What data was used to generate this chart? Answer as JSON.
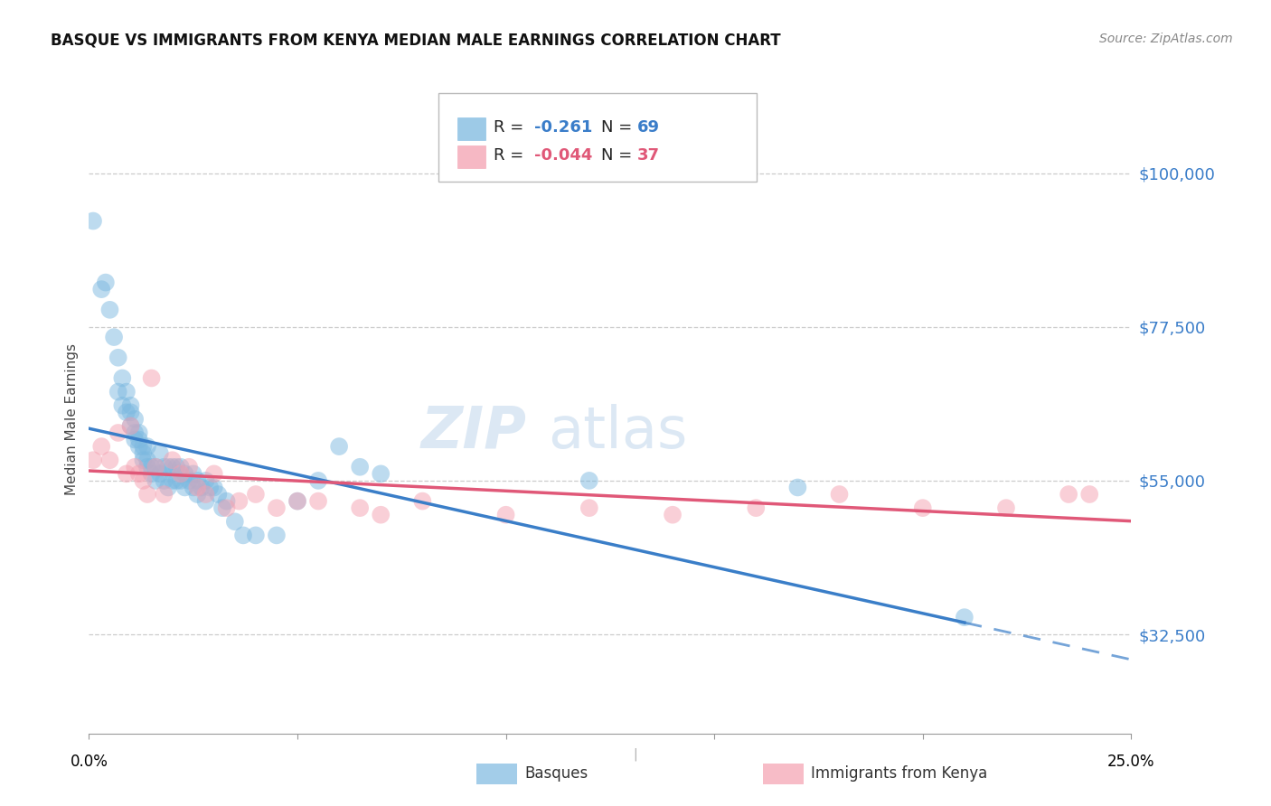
{
  "title": "BASQUE VS IMMIGRANTS FROM KENYA MEDIAN MALE EARNINGS CORRELATION CHART",
  "source": "Source: ZipAtlas.com",
  "ylabel": "Median Male Earnings",
  "y_ticks": [
    32500,
    55000,
    77500,
    100000
  ],
  "y_tick_labels": [
    "$32,500",
    "$55,000",
    "$77,500",
    "$100,000"
  ],
  "ylim": [
    18000,
    110000
  ],
  "xlim": [
    0.0,
    0.25
  ],
  "watermark_zip": "ZIP",
  "watermark_atlas": "atlas",
  "blue_color": "#7cb9e0",
  "pink_color": "#f4a0b0",
  "line_blue": "#3a7ec8",
  "line_pink": "#e05878",
  "blue_r": "-0.261",
  "blue_n": "69",
  "pink_r": "-0.044",
  "pink_n": "37",
  "basque_x": [
    0.001,
    0.003,
    0.004,
    0.005,
    0.006,
    0.007,
    0.007,
    0.008,
    0.008,
    0.009,
    0.009,
    0.01,
    0.01,
    0.01,
    0.011,
    0.011,
    0.011,
    0.012,
    0.012,
    0.012,
    0.013,
    0.013,
    0.013,
    0.014,
    0.014,
    0.014,
    0.015,
    0.015,
    0.016,
    0.016,
    0.017,
    0.017,
    0.018,
    0.018,
    0.019,
    0.019,
    0.02,
    0.02,
    0.021,
    0.021,
    0.022,
    0.022,
    0.023,
    0.023,
    0.024,
    0.025,
    0.025,
    0.026,
    0.026,
    0.027,
    0.028,
    0.028,
    0.029,
    0.03,
    0.031,
    0.032,
    0.033,
    0.035,
    0.037,
    0.04,
    0.045,
    0.05,
    0.055,
    0.06,
    0.065,
    0.07,
    0.12,
    0.17,
    0.21
  ],
  "basque_y": [
    93000,
    83000,
    84000,
    80000,
    76000,
    73000,
    68000,
    70000,
    66000,
    68000,
    65000,
    66000,
    65000,
    63000,
    64000,
    62000,
    61000,
    62000,
    61000,
    60000,
    60000,
    59000,
    58000,
    60000,
    58000,
    57000,
    57000,
    56000,
    57000,
    55000,
    59000,
    56000,
    57000,
    55000,
    57000,
    54000,
    57000,
    55000,
    57000,
    55000,
    57000,
    55000,
    56000,
    54000,
    55000,
    56000,
    54000,
    55000,
    53000,
    54000,
    55000,
    52000,
    54000,
    54000,
    53000,
    51000,
    52000,
    49000,
    47000,
    47000,
    47000,
    52000,
    55000,
    60000,
    57000,
    56000,
    55000,
    54000,
    35000
  ],
  "kenya_x": [
    0.001,
    0.003,
    0.005,
    0.007,
    0.009,
    0.01,
    0.011,
    0.012,
    0.013,
    0.014,
    0.015,
    0.016,
    0.018,
    0.02,
    0.022,
    0.024,
    0.026,
    0.028,
    0.03,
    0.033,
    0.036,
    0.04,
    0.045,
    0.05,
    0.055,
    0.065,
    0.07,
    0.08,
    0.1,
    0.12,
    0.14,
    0.16,
    0.18,
    0.2,
    0.22,
    0.235,
    0.24
  ],
  "kenya_y": [
    58000,
    60000,
    58000,
    62000,
    56000,
    63000,
    57000,
    56000,
    55000,
    53000,
    70000,
    57000,
    53000,
    58000,
    56000,
    57000,
    54000,
    53000,
    56000,
    51000,
    52000,
    53000,
    51000,
    52000,
    52000,
    51000,
    50000,
    52000,
    50000,
    51000,
    50000,
    51000,
    53000,
    51000,
    51000,
    53000,
    53000
  ]
}
